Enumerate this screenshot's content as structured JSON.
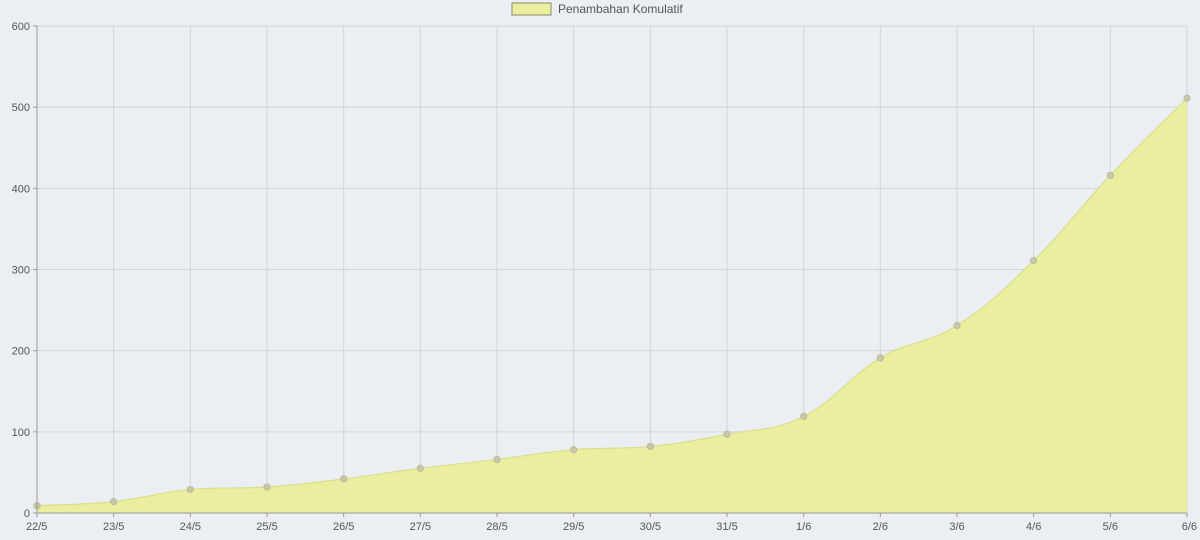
{
  "chart_data": {
    "type": "area",
    "categories": [
      "22/5",
      "23/5",
      "24/5",
      "25/5",
      "26/5",
      "27/5",
      "28/5",
      "29/5",
      "30/5",
      "31/5",
      "1/6",
      "2/6",
      "3/6",
      "4/6",
      "5/6",
      "6/6"
    ],
    "series": [
      {
        "name": "Penambahan Komulatif",
        "values": [
          9,
          14,
          29,
          32,
          42,
          55,
          66,
          78,
          82,
          97,
          119,
          191,
          231,
          311,
          416,
          511
        ]
      }
    ],
    "ylim": [
      0,
      600
    ],
    "yticks": [
      0,
      100,
      200,
      300,
      400,
      500,
      600
    ],
    "grid": true,
    "legend_position": "top-center",
    "colors": {
      "fill": "#e9ef9e",
      "line": "#d9df8c",
      "point": "#c8c8a8",
      "grid": "#d0d5da",
      "axis": "#9a9a9a",
      "legend_box": "#e9ef9e",
      "legend_border": "#8a8a6a",
      "background": "#ebeff3"
    }
  }
}
